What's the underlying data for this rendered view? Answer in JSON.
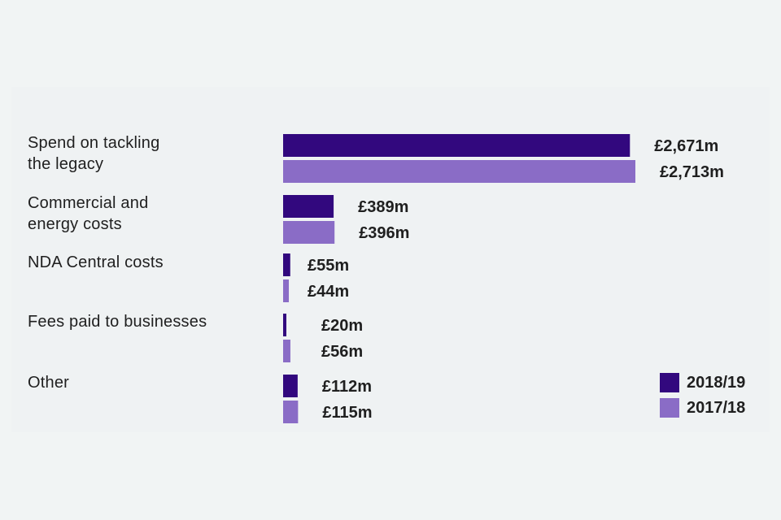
{
  "chart_data": {
    "type": "bar",
    "orientation": "horizontal",
    "title": "",
    "xlabel": "",
    "ylabel": "",
    "categories": [
      [
        "Spend on tackling",
        "the legacy"
      ],
      [
        "Commercial and",
        "energy costs"
      ],
      [
        "NDA Central costs"
      ],
      [
        "Fees paid to businesses"
      ],
      [
        "Other"
      ]
    ],
    "series": [
      {
        "name": "2018/19",
        "color": "#32087e",
        "values": [
          2671,
          389,
          55,
          20,
          112
        ],
        "labels": [
          "£2,671m",
          "£389m",
          "£55m",
          "£20m",
          "£112m"
        ]
      },
      {
        "name": "2017/18",
        "color": "#8a6cc6",
        "values": [
          2713,
          396,
          44,
          56,
          115
        ],
        "labels": [
          "£2,713m",
          "£396m",
          "£44m",
          "£56m",
          "£115m"
        ]
      }
    ],
    "unit": "£m",
    "legend": "bottom-right",
    "grid": false
  }
}
